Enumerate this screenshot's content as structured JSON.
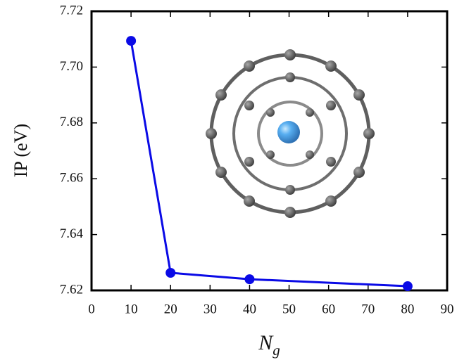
{
  "chart_data": {
    "type": "line",
    "x_label": "N",
    "x_label_subscript": "g",
    "y_label": "IP (eV)",
    "x": [
      10,
      20,
      40,
      80
    ],
    "series": [
      {
        "color": "#0a0ae6",
        "values": [
          7.7094,
          7.6263,
          7.624,
          7.6215
        ]
      }
    ],
    "xlim": [
      0,
      90
    ],
    "xticks": [
      0,
      10,
      20,
      30,
      40,
      50,
      60,
      70,
      80,
      90
    ],
    "ylim": [
      7.62,
      7.72
    ],
    "yticks": [
      7.62,
      7.64,
      7.66,
      7.68,
      {
        "value": 7.7,
        "label": "7.70"
      },
      7.72
    ]
  }
}
